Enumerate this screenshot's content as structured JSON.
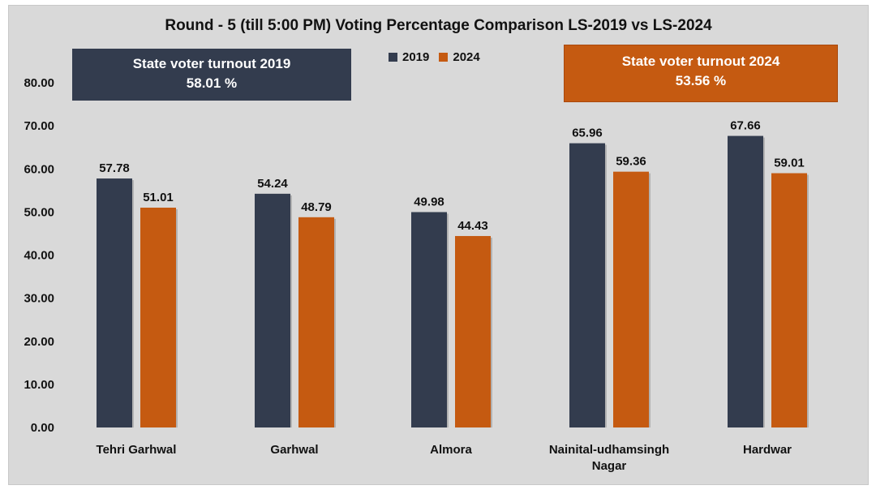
{
  "chart_data": {
    "type": "bar",
    "title": "Round - 5 (till 5:00 PM) Voting Percentage Comparison LS-2019 vs LS-2024",
    "categories": [
      [
        "Tehri Garhwal"
      ],
      [
        "Garhwal"
      ],
      [
        "Almora"
      ],
      [
        "Nainital-udhamsingh",
        "Nagar"
      ],
      [
        "Hardwar"
      ]
    ],
    "series": [
      {
        "name": "2019",
        "color": "#333c4e",
        "values": [
          57.78,
          54.24,
          49.98,
          65.96,
          67.66
        ],
        "labels": [
          "57.78",
          "54.24",
          "49.98",
          "65.96",
          "67.66"
        ]
      },
      {
        "name": "2024",
        "color": "#c55a11",
        "values": [
          51.01,
          48.79,
          44.43,
          59.36,
          59.01
        ],
        "labels": [
          "51.01",
          "48.79",
          "44.43",
          "59.36",
          "59.01"
        ]
      }
    ],
    "ylim": [
      0,
      80
    ],
    "yticks": [
      "0.00",
      "10.00",
      "20.00",
      "30.00",
      "40.00",
      "50.00",
      "60.00",
      "70.00",
      "80.00"
    ],
    "xlabel": "",
    "ylabel": "",
    "legend": "top-center"
  },
  "turnout_2019": {
    "label": "State voter turnout 2019",
    "value": "58.01 %"
  },
  "turnout_2024": {
    "label": "State voter turnout 2024",
    "value": "53.56  %"
  }
}
